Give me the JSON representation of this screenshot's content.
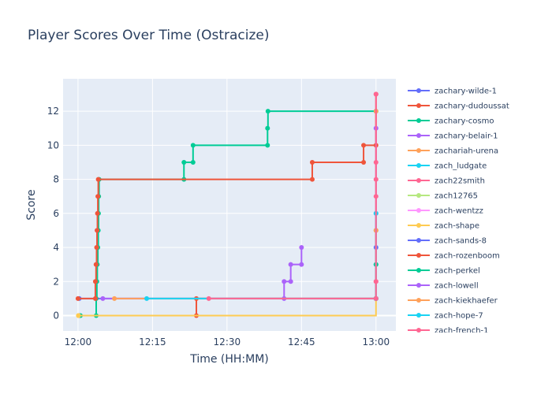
{
  "chart_data": {
    "type": "line",
    "line_shape": "step-after",
    "title": "Player Scores Over Time (Ostracize)",
    "xlabel": "Time (HH:MM)",
    "ylabel": "Score",
    "xlim": [
      "11:57",
      "13:04"
    ],
    "ylim": [
      -0.9,
      13.9
    ],
    "x_ticks": [
      {
        "t": "12:00",
        "label": "12:00"
      },
      {
        "t": "12:15",
        "label": "12:15"
      },
      {
        "t": "12:30",
        "label": "12:30"
      },
      {
        "t": "12:45",
        "label": "12:45"
      },
      {
        "t": "13:00",
        "label": "13:00"
      }
    ],
    "y_ticks": [
      0,
      2,
      4,
      6,
      8,
      10,
      12
    ],
    "grid": true,
    "legend_position": "right",
    "series": [
      {
        "name": "zachary-wilde-1",
        "color": "#636efa",
        "points": [
          [
            "12:00:15",
            1
          ],
          [
            "13:00",
            1
          ],
          [
            "13:00",
            4
          ]
        ]
      },
      {
        "name": "zachary-dudoussat",
        "color": "#EF553B",
        "points": [
          [
            "12:00:10",
            0
          ],
          [
            "12:23:50",
            0
          ],
          [
            "12:23:50",
            1
          ],
          [
            "13:00",
            1
          ],
          [
            "13:00",
            5
          ]
        ]
      },
      {
        "name": "zachary-cosmo",
        "color": "#00cc96",
        "points": [
          [
            "12:00:30",
            0
          ],
          [
            "12:03:40",
            0
          ],
          [
            "12:03:40",
            1
          ],
          [
            "12:03:48",
            2
          ],
          [
            "12:03:53",
            3
          ],
          [
            "12:04:00",
            4
          ],
          [
            "12:04:05",
            5
          ],
          [
            "12:04:08",
            6
          ],
          [
            "12:04:10",
            7
          ],
          [
            "12:04:15",
            8
          ],
          [
            "12:21:20",
            8
          ],
          [
            "12:21:20",
            9
          ],
          [
            "12:23:10",
            9
          ],
          [
            "12:23:10",
            10
          ],
          [
            "12:38:10",
            10
          ],
          [
            "12:38:10",
            11
          ],
          [
            "12:38:15",
            12
          ],
          [
            "13:00",
            12
          ]
        ]
      },
      {
        "name": "zachary-belair-1",
        "color": "#ab63fa",
        "points": [
          [
            "12:05:00",
            1
          ],
          [
            "12:41:30",
            1
          ],
          [
            "12:41:30",
            2
          ],
          [
            "12:42:50",
            2
          ],
          [
            "12:42:50",
            3
          ],
          [
            "12:45:00",
            3
          ],
          [
            "12:45:00",
            4
          ]
        ]
      },
      {
        "name": "zachariah-urena",
        "color": "#FFA15A",
        "points": [
          [
            "12:07:20",
            1
          ],
          [
            "13:00",
            1
          ],
          [
            "13:00",
            12
          ]
        ]
      },
      {
        "name": "zach_ludgate",
        "color": "#19d3f3",
        "points": [
          [
            "12:13:50",
            1
          ],
          [
            "13:00",
            1
          ],
          [
            "13:00",
            3
          ]
        ]
      },
      {
        "name": "zach22smith",
        "color": "#FF6692",
        "points": [
          [
            "12:26:20",
            1
          ],
          [
            "13:00",
            1
          ],
          [
            "13:00",
            2
          ]
        ]
      },
      {
        "name": "zach12765",
        "color": "#B6E880",
        "points": [
          [
            "13:00",
            1
          ]
        ]
      },
      {
        "name": "zach-wentzz",
        "color": "#FF97FF",
        "points": [
          [
            "13:00",
            1
          ]
        ]
      },
      {
        "name": "zach-shape",
        "color": "#FECB52",
        "points": [
          [
            "12:00:05",
            0
          ],
          [
            "12:00:05",
            0
          ],
          [
            "13:00",
            1
          ]
        ]
      },
      {
        "name": "zach-sands-8",
        "color": "#636efa",
        "points": [
          [
            "13:00",
            1
          ],
          [
            "13:00",
            6
          ]
        ]
      },
      {
        "name": "zach-rozenboom",
        "color": "#EF553B",
        "points": [
          [
            "12:00:00",
            1
          ],
          [
            "12:03:30",
            1
          ],
          [
            "12:03:30",
            2
          ],
          [
            "12:03:38",
            3
          ],
          [
            "12:03:45",
            4
          ],
          [
            "12:03:50",
            5
          ],
          [
            "12:03:55",
            6
          ],
          [
            "12:04:00",
            7
          ],
          [
            "12:04:05",
            8
          ],
          [
            "12:47:10",
            8
          ],
          [
            "12:47:10",
            9
          ],
          [
            "12:57:30",
            9
          ],
          [
            "12:57:30",
            10
          ],
          [
            "13:00",
            10
          ],
          [
            "13:00",
            13
          ]
        ]
      },
      {
        "name": "zach-perkel",
        "color": "#00cc96",
        "points": [
          [
            "13:00",
            1
          ],
          [
            "13:00",
            3
          ]
        ]
      },
      {
        "name": "zach-lowell",
        "color": "#ab63fa",
        "points": [
          [
            "13:00",
            1
          ],
          [
            "13:00",
            11
          ]
        ]
      },
      {
        "name": "zach-kiekhaefer",
        "color": "#FFA15A",
        "points": [
          [
            "13:00",
            1
          ],
          [
            "13:00",
            5
          ]
        ]
      },
      {
        "name": "zach-hope-7",
        "color": "#19d3f3",
        "points": [
          [
            "13:00",
            1
          ],
          [
            "13:00",
            6
          ]
        ]
      },
      {
        "name": "zach-french-1",
        "color": "#FF6692",
        "points": [
          [
            "13:00",
            1
          ],
          [
            "13:00",
            2
          ],
          [
            "13:00",
            7
          ],
          [
            "13:00",
            8
          ],
          [
            "13:00",
            9
          ],
          [
            "13:00",
            13
          ]
        ]
      }
    ]
  }
}
